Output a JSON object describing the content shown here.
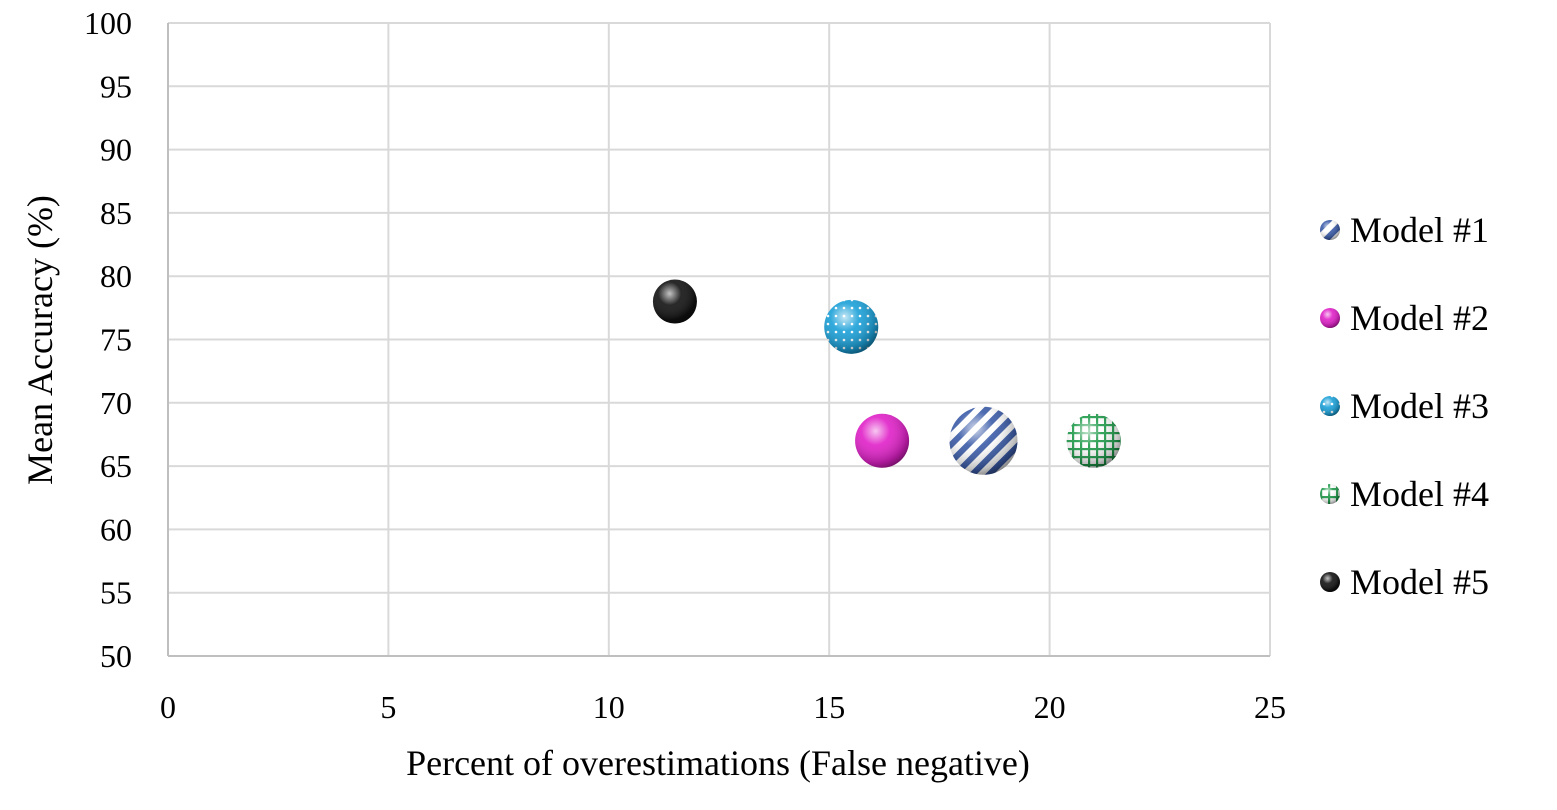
{
  "chart_data": {
    "type": "scatter",
    "xlabel": "Percent of overestimations (False negative)",
    "ylabel": "Mean Accuracy (%)",
    "xlim": [
      0,
      25
    ],
    "ylim": [
      50,
      100
    ],
    "x_ticks": [
      0,
      5,
      10,
      15,
      20,
      25
    ],
    "y_ticks": [
      50,
      55,
      60,
      65,
      70,
      75,
      80,
      85,
      90,
      95,
      100
    ],
    "grid": true,
    "legend_position": "right",
    "series": [
      {
        "name": "Model #1",
        "x": 18.5,
        "y": 67,
        "size": "large",
        "color": "#3a5ba8",
        "pattern": "diagonal-stripes"
      },
      {
        "name": "Model #2",
        "x": 16.2,
        "y": 67,
        "size": "medium",
        "color": "#e020c8",
        "pattern": "solid"
      },
      {
        "name": "Model #3",
        "x": 15.5,
        "y": 76,
        "size": "medium",
        "color": "#1aa0d8",
        "pattern": "dots"
      },
      {
        "name": "Model #4",
        "x": 21.0,
        "y": 67,
        "size": "medium",
        "color": "#1e9a4a",
        "pattern": "grid"
      },
      {
        "name": "Model #5",
        "x": 11.5,
        "y": 78,
        "size": "small",
        "color": "#111111",
        "pattern": "solid"
      }
    ]
  }
}
